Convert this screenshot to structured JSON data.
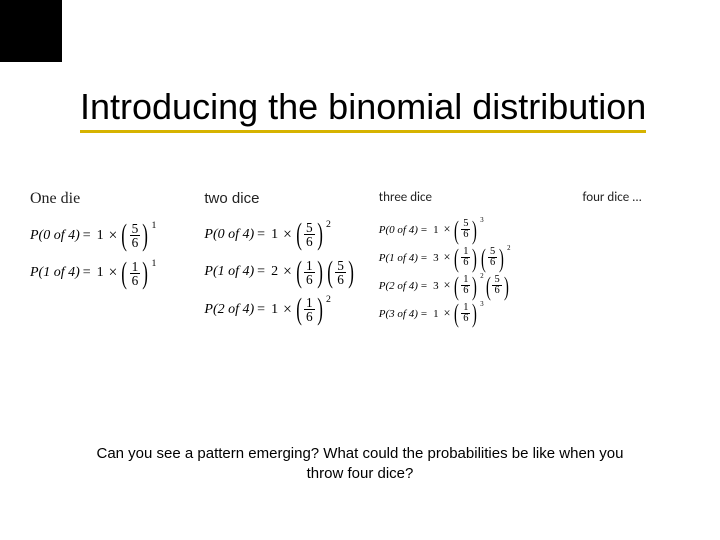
{
  "title": "Introducing the binomial distribution",
  "accent_color": "#d6b300",
  "columns": {
    "one": {
      "header": "One die"
    },
    "two": {
      "header": "two dice"
    },
    "three": {
      "header": "three dice"
    },
    "four": {
      "header": "four dice ..."
    }
  },
  "formulas": {
    "c1r1": {
      "lhs": "P(0 of 4)",
      "coef": "1",
      "terms": [
        {
          "n": "5",
          "d": "6",
          "e": "1"
        }
      ]
    },
    "c1r2": {
      "lhs": "P(1 of 4)",
      "coef": "1",
      "terms": [
        {
          "n": "1",
          "d": "6",
          "e": "1"
        }
      ]
    },
    "c2r1": {
      "lhs": "P(0 of 4)",
      "coef": "1",
      "terms": [
        {
          "n": "5",
          "d": "6",
          "e": "2"
        }
      ]
    },
    "c2r2": {
      "lhs": "P(1 of 4)",
      "coef": "2",
      "terms": [
        {
          "n": "1",
          "d": "6",
          "e": ""
        },
        {
          "n": "5",
          "d": "6",
          "e": ""
        }
      ]
    },
    "c2r3": {
      "lhs": "P(2 of 4)",
      "coef": "1",
      "terms": [
        {
          "n": "1",
          "d": "6",
          "e": "2"
        }
      ]
    },
    "c3r1": {
      "lhs": "P(0 of 4)",
      "coef": "1",
      "terms": [
        {
          "n": "5",
          "d": "6",
          "e": "3"
        }
      ]
    },
    "c3r2": {
      "lhs": "P(1 of 4)",
      "coef": "3",
      "terms": [
        {
          "n": "1",
          "d": "6",
          "e": ""
        },
        {
          "n": "5",
          "d": "6",
          "e": "2"
        }
      ]
    },
    "c3r3": {
      "lhs": "P(2 of 4)",
      "coef": "3",
      "terms": [
        {
          "n": "1",
          "d": "6",
          "e": "2"
        },
        {
          "n": "5",
          "d": "6",
          "e": ""
        }
      ]
    },
    "c3r4": {
      "lhs": "P(3 of 4)",
      "coef": "1",
      "terms": [
        {
          "n": "1",
          "d": "6",
          "e": "3"
        }
      ]
    }
  },
  "footer": "Can you see a pattern emerging? What could the probabilities be like when you throw four dice?"
}
